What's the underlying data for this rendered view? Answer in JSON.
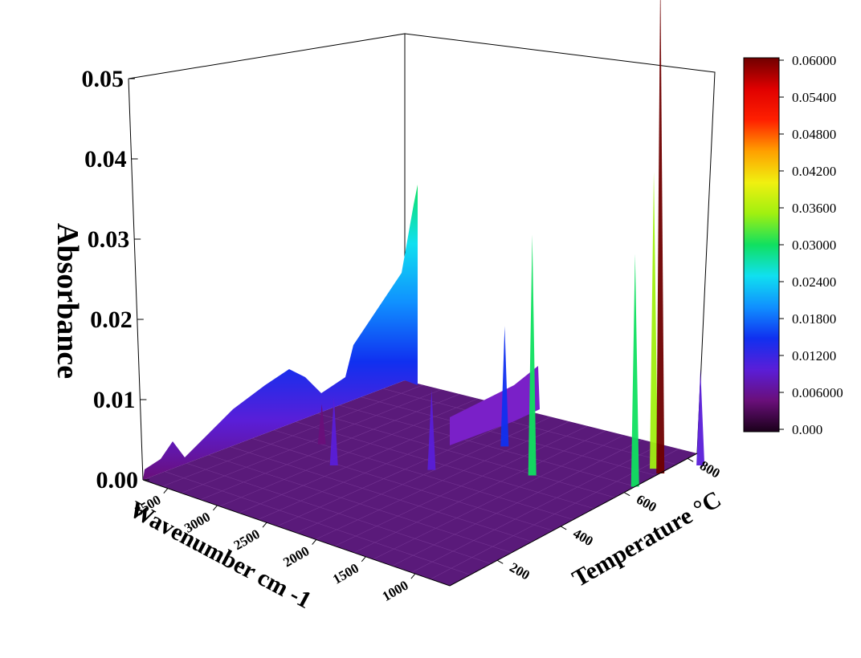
{
  "chart_data": {
    "type": "surface3d",
    "zlabel": "Absorbance",
    "xlabel": "Wavenumber cm -1",
    "ylabel": "Temperature °C",
    "zlim": [
      0.0,
      0.05
    ],
    "zticks": [
      "0.00",
      "0.01",
      "0.02",
      "0.03",
      "0.04",
      "0.05"
    ],
    "xticks": [
      "3500",
      "3000",
      "2500",
      "2000",
      "1500",
      "1000"
    ],
    "yticks": [
      "200",
      "400",
      "600",
      "800"
    ],
    "colorbar": {
      "ticks": [
        "0.06000",
        "0.05400",
        "0.04800",
        "0.04200",
        "0.03600",
        "0.03000",
        "0.02400",
        "0.01800",
        "0.01200",
        "0.006000",
        "0.000"
      ],
      "range": [
        0.0,
        0.06
      ],
      "colors": [
        "#1a001a",
        "#6a0f7a",
        "#5a1ed8",
        "#1030f0",
        "#1090ff",
        "#10e0f0",
        "#10e060",
        "#a0f010",
        "#f0f010",
        "#ffa000",
        "#ff2000",
        "#e00000",
        "#700000"
      ]
    },
    "peaks": [
      {
        "wavenumber": 2360,
        "temperature": 500,
        "absorbance": 0.01
      },
      {
        "wavenumber": 2940,
        "temperature": 380,
        "absorbance": 0.0085
      },
      {
        "wavenumber": 3300,
        "temperature": 450,
        "absorbance": 0.005
      },
      {
        "wavenumber": 1750,
        "temperature": 620,
        "absorbance": 0.03
      },
      {
        "wavenumber": 1200,
        "temperature": 820,
        "absorbance": 0.037
      },
      {
        "wavenumber": 1050,
        "temperature": 720,
        "absorbance": 0.029
      },
      {
        "wavenumber": 1100,
        "temperature": 810,
        "absorbance": 0.063
      },
      {
        "wavenumber": 2300,
        "temperature": 700,
        "absorbance": 0.015
      },
      {
        "wavenumber": 1000,
        "temperature": 900,
        "absorbance": 0.012
      }
    ]
  }
}
